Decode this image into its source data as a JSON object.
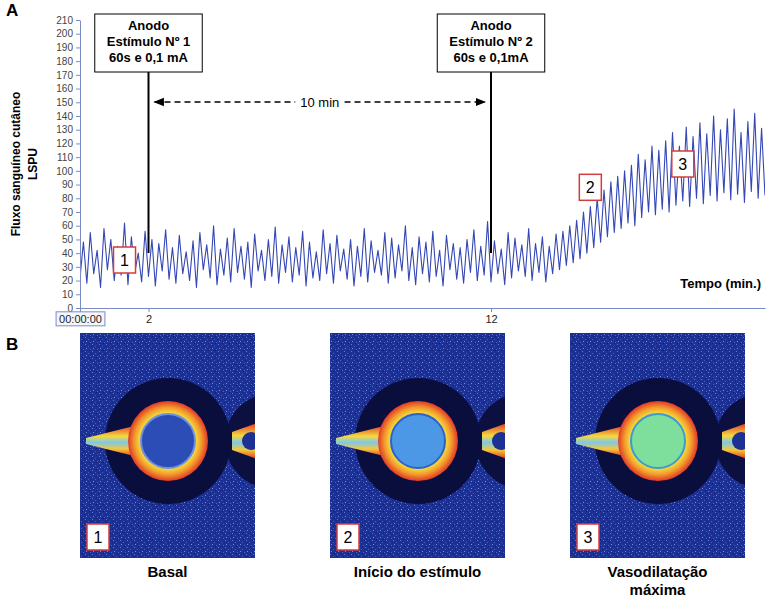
{
  "chart_data": {
    "type": "line",
    "panel": "A",
    "xlabel": "Tempo (min.)",
    "ylabel": [
      "Fluxo sanguíneo cutâneo",
      "LSPU"
    ],
    "x": [
      0,
      0.1,
      0.2,
      0.3,
      0.4,
      0.5,
      0.6,
      0.7,
      0.8,
      0.9,
      1,
      1.1,
      1.2,
      1.3,
      1.4,
      1.5,
      1.6,
      1.7,
      1.8,
      1.9,
      2,
      2.1,
      2.2,
      2.3,
      2.4,
      2.5,
      2.6,
      2.7,
      2.8,
      2.9,
      3,
      3.1,
      3.2,
      3.3,
      3.4,
      3.5,
      3.6,
      3.7,
      3.8,
      3.9,
      4,
      4.1,
      4.2,
      4.3,
      4.4,
      4.5,
      4.6,
      4.7,
      4.8,
      4.9,
      5,
      5.1,
      5.2,
      5.3,
      5.4,
      5.5,
      5.6,
      5.7,
      5.8,
      5.9,
      6,
      6.1,
      6.2,
      6.3,
      6.4,
      6.5,
      6.6,
      6.7,
      6.8,
      6.9,
      7,
      7.1,
      7.2,
      7.3,
      7.4,
      7.5,
      7.6,
      7.7,
      7.8,
      7.9,
      8,
      8.1,
      8.2,
      8.3,
      8.4,
      8.5,
      8.6,
      8.7,
      8.8,
      8.9,
      9,
      9.1,
      9.2,
      9.3,
      9.4,
      9.5,
      9.6,
      9.7,
      9.8,
      9.9,
      10,
      10.1,
      10.2,
      10.3,
      10.4,
      10.5,
      10.6,
      10.7,
      10.8,
      10.9,
      11,
      11.1,
      11.2,
      11.3,
      11.4,
      11.5,
      11.6,
      11.7,
      11.8,
      11.9,
      12,
      12.1,
      12.2,
      12.3,
      12.4,
      12.5,
      12.6,
      12.7,
      12.8,
      12.9,
      13,
      13.1,
      13.2,
      13.3,
      13.4,
      13.5,
      13.6,
      13.7,
      13.8,
      13.9,
      14,
      14.1,
      14.2,
      14.3,
      14.4,
      14.5,
      14.6,
      14.7,
      14.8,
      14.9,
      15,
      15.1,
      15.2,
      15.3,
      15.4,
      15.5,
      15.6,
      15.7,
      15.8,
      15.9,
      16,
      16.1,
      16.2,
      16.3,
      16.4,
      16.5,
      16.6,
      16.7,
      16.8,
      16.9,
      17,
      17.1,
      17.2,
      17.3,
      17.4,
      17.5,
      17.6,
      17.7,
      17.8,
      17.9,
      18,
      18.1,
      18.2,
      18.3,
      18.4,
      18.5,
      18.6,
      18.7,
      18.8,
      18.9,
      19,
      19.1,
      19.2,
      19.3,
      19.4,
      19.5,
      19.6,
      19.7,
      19.8,
      19.9,
      20
    ],
    "series": [
      {
        "color": "#3447b4",
        "values": [
          22,
          48,
          18,
          55,
          25,
          42,
          15,
          58,
          28,
          50,
          20,
          45,
          24,
          62,
          17,
          52,
          26,
          40,
          19,
          56,
          23,
          50,
          16,
          47,
          27,
          57,
          21,
          44,
          18,
          53,
          25,
          41,
          20,
          49,
          15,
          55,
          28,
          46,
          22,
          60,
          17,
          43,
          24,
          51,
          19,
          58,
          26,
          45,
          21,
          48,
          15,
          54,
          27,
          42,
          20,
          50,
          23,
          59,
          18,
          46,
          26,
          52,
          19,
          44,
          24,
          56,
          16,
          48,
          22,
          41,
          20,
          57,
          25,
          47,
          18,
          53,
          27,
          43,
          21,
          50,
          16,
          45,
          23,
          58,
          19,
          49,
          26,
          42,
          24,
          55,
          18,
          51,
          22,
          46,
          27,
          60,
          20,
          44,
          17,
          52,
          25,
          48,
          19,
          56,
          23,
          42,
          16,
          53,
          28,
          47,
          21,
          44,
          18,
          50,
          26,
          57,
          20,
          45,
          24,
          63,
          19,
          49,
          25,
          43,
          17,
          55,
          22,
          51,
          27,
          46,
          23,
          58,
          20,
          47,
          26,
          52,
          19,
          45,
          25,
          54,
          28,
          56,
          31,
          60,
          33,
          64,
          36,
          70,
          40,
          74,
          44,
          80,
          48,
          86,
          52,
          92,
          55,
          96,
          58,
          100,
          62,
          104,
          60,
          112,
          66,
          108,
          70,
          118,
          68,
          115,
          72,
          122,
          70,
          128,
          75,
          118,
          78,
          132,
          74,
          125,
          80,
          135,
          76,
          127,
          82,
          140,
          78,
          130,
          84,
          138,
          79,
          145,
          83,
          128,
          77,
          136,
          85,
          142,
          80,
          131,
          82
        ]
      }
    ],
    "xlim": [
      0,
      20
    ],
    "xticks": [
      {
        "value": 0,
        "label": "00:00:00"
      },
      2,
      12
    ],
    "ylim": [
      0,
      210
    ],
    "yticks": [
      0,
      10,
      20,
      30,
      40,
      50,
      60,
      70,
      80,
      90,
      100,
      110,
      120,
      130,
      140,
      150,
      160,
      170,
      180,
      190,
      200,
      210
    ],
    "grid": false,
    "annotations": [
      {
        "x": 2,
        "lines": [
          "Anodo",
          "Estímulo Nº 1",
          "60s e 0,1 mA"
        ]
      },
      {
        "x": 12,
        "lines": [
          "Anodo",
          "Estímulo Nº 2",
          "60s e 0,1mA"
        ]
      }
    ],
    "interval": {
      "from": 2,
      "to": 12,
      "label": "10 min"
    },
    "points": [
      {
        "label": "1",
        "x": 1.3,
        "y": 35
      },
      {
        "label": "2",
        "x": 14.9,
        "y": 88
      },
      {
        "label": "3",
        "x": 17.6,
        "y": 105
      }
    ]
  },
  "panel_b": {
    "panel": "B",
    "images": [
      {
        "label": "1",
        "caption": "Basal"
      },
      {
        "label": "2",
        "caption": "Início do estímulo"
      },
      {
        "label": "3",
        "caption": "Vasodilatação máxima"
      }
    ]
  }
}
